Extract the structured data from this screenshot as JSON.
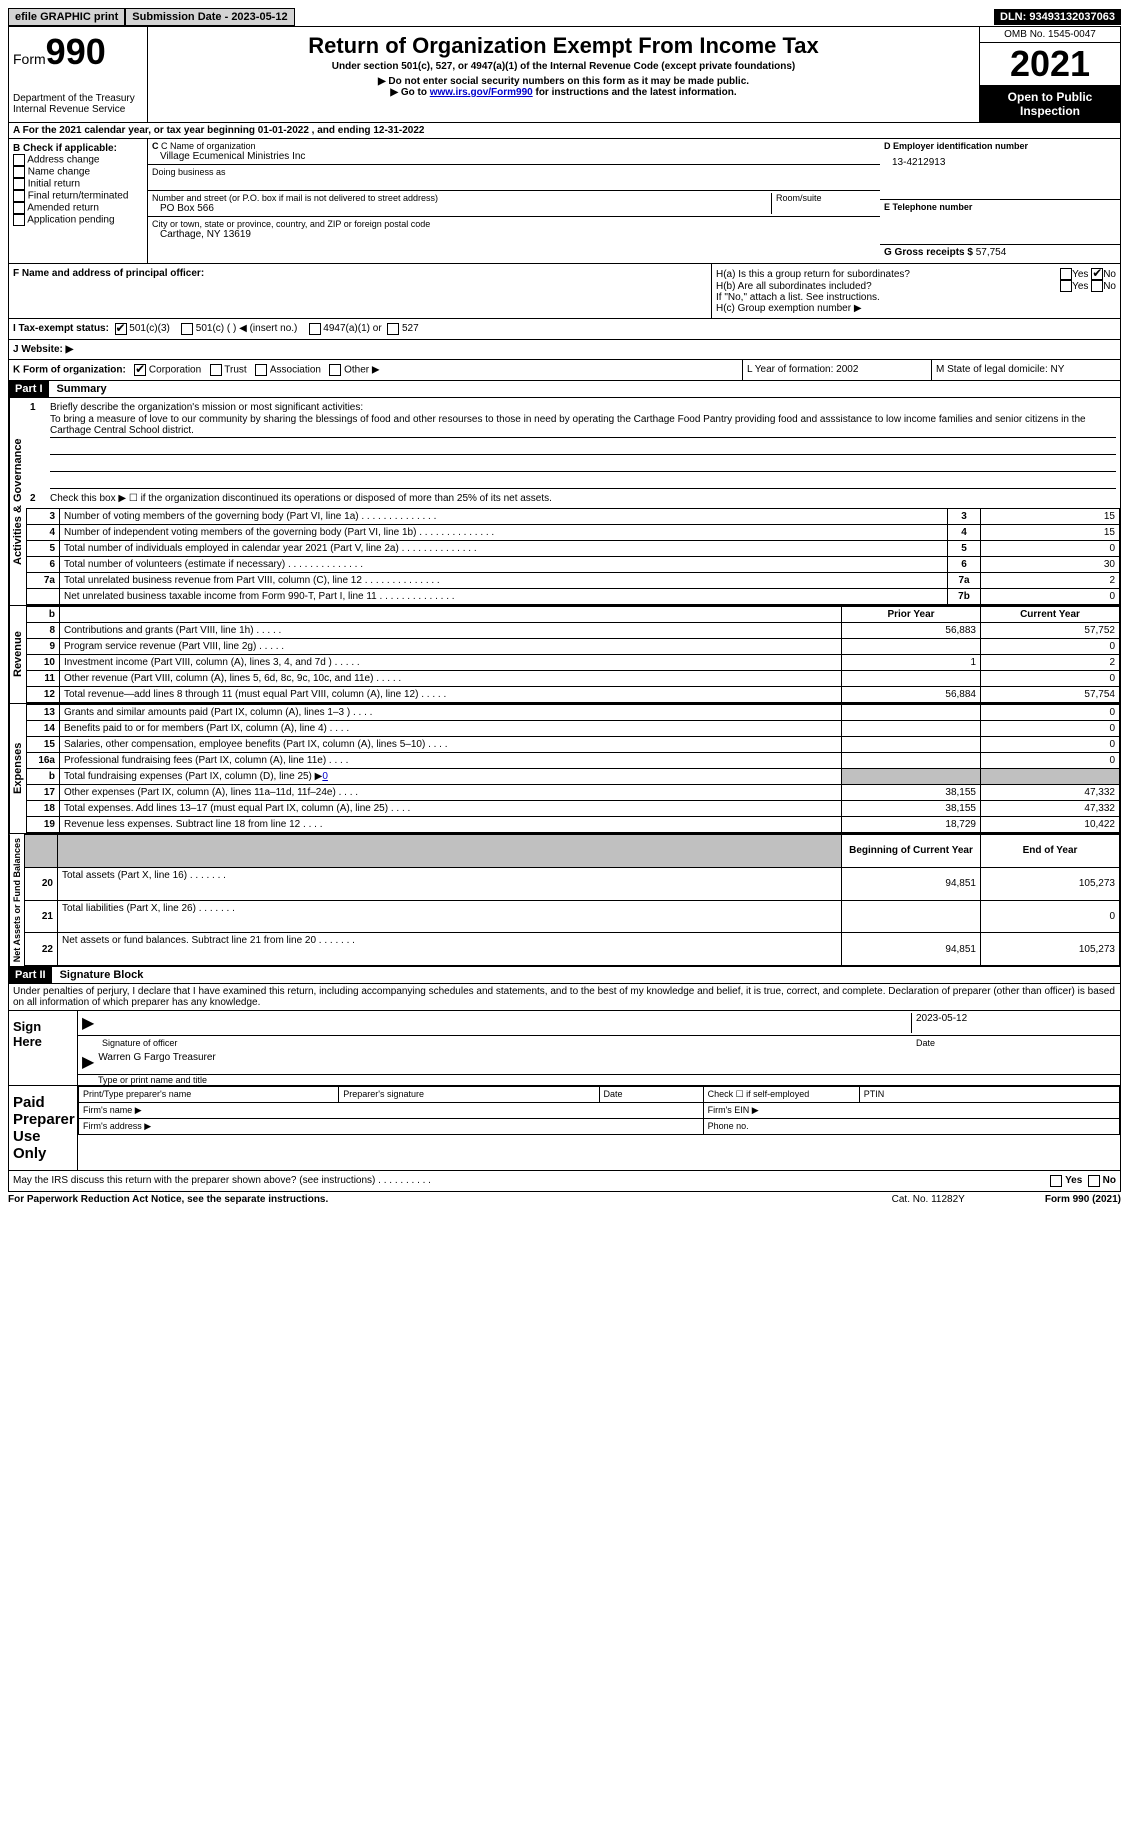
{
  "topbar": {
    "efile": "efile GRAPHIC print",
    "submission_label": "Submission Date - 2023-05-12",
    "dln": "DLN: 93493132037063"
  },
  "header": {
    "form_label": "Form",
    "form_number": "990",
    "dept": "Department of the Treasury",
    "irs": "Internal Revenue Service",
    "title": "Return of Organization Exempt From Income Tax",
    "subtitle": "Under section 501(c), 527, or 4947(a)(1) of the Internal Revenue Code (except private foundations)",
    "note1": "▶ Do not enter social security numbers on this form as it may be made public.",
    "note2_pre": "▶ Go to ",
    "note2_link": "www.irs.gov/Form990",
    "note2_post": " for instructions and the latest information.",
    "omb": "OMB No. 1545-0047",
    "year": "2021",
    "inspection": "Open to Public Inspection"
  },
  "lineA": "A For the 2021 calendar year, or tax year beginning 01-01-2022   , and ending 12-31-2022",
  "secB": {
    "title": "B Check if applicable:",
    "opts": [
      "Address change",
      "Name change",
      "Initial return",
      "Final return/terminated",
      "Amended return",
      "Application pending"
    ],
    "c_label": "C Name of organization",
    "c_name": "Village Ecumenical Ministries Inc",
    "dba_label": "Doing business as",
    "addr_label": "Number and street (or P.O. box if mail is not delivered to street address)",
    "room_label": "Room/suite",
    "addr": "PO Box 566",
    "city_label": "City or town, state or province, country, and ZIP or foreign postal code",
    "city": "Carthage, NY  13619",
    "d_label": "D Employer identification number",
    "d_val": "13-4212913",
    "e_label": "E Telephone number",
    "g_label": "G Gross receipts $ ",
    "g_val": "57,754"
  },
  "secF": {
    "f_label": "F  Name and address of principal officer:",
    "ha": "H(a)  Is this a group return for subordinates?",
    "hb": "H(b)  Are all subordinates included?",
    "hb_note": "If \"No,\" attach a list. See instructions.",
    "hc": "H(c)  Group exemption number ▶",
    "yes": "Yes",
    "no": "No"
  },
  "secI": {
    "label": "I     Tax-exempt status:",
    "o1": "501(c)(3)",
    "o2": "501(c) (  ) ◀ (insert no.)",
    "o3": "4947(a)(1) or",
    "o4": "527"
  },
  "secJ": "J    Website: ▶",
  "secK": {
    "label": "K Form of organization:",
    "o1": "Corporation",
    "o2": "Trust",
    "o3": "Association",
    "o4": "Other ▶",
    "l": "L Year of formation: 2002",
    "m": "M State of legal domicile: NY"
  },
  "part1": {
    "hdr": "Part I",
    "title": "Summary",
    "l1": "Briefly describe the organization's mission or most significant activities:",
    "mission": "To bring a measure of love to our community by sharing the blessings of food and other resourses to those in need by operating the Carthage Food Pantry providing food and asssistance to low income families and senior citizens in the Carthage Central School district.",
    "l2": "Check this box ▶ ☐  if the organization discontinued its operations or disposed of more than 25% of its net assets.",
    "vlabel_ag": "Activities & Governance",
    "vlabel_rev": "Revenue",
    "vlabel_exp": "Expenses",
    "vlabel_na": "Net Assets or Fund Balances",
    "prior_year": "Prior Year",
    "current_year": "Current Year",
    "begin_year": "Beginning of Current Year",
    "end_year": "End of Year"
  },
  "rows_ag": [
    {
      "n": "3",
      "d": "Number of voting members of the governing body (Part VI, line 1a)",
      "b": "3",
      "v": "15"
    },
    {
      "n": "4",
      "d": "Number of independent voting members of the governing body (Part VI, line 1b)",
      "b": "4",
      "v": "15"
    },
    {
      "n": "5",
      "d": "Total number of individuals employed in calendar year 2021 (Part V, line 2a)",
      "b": "5",
      "v": "0"
    },
    {
      "n": "6",
      "d": "Total number of volunteers (estimate if necessary)",
      "b": "6",
      "v": "30"
    },
    {
      "n": "7a",
      "d": "Total unrelated business revenue from Part VIII, column (C), line 12",
      "b": "7a",
      "v": "2"
    },
    {
      "n": "",
      "d": "Net unrelated business taxable income from Form 990-T, Part I, line 11",
      "b": "7b",
      "v": "0"
    }
  ],
  "rows_rev": [
    {
      "n": "8",
      "d": "Contributions and grants (Part VIII, line 1h)",
      "p": "56,883",
      "c": "57,752"
    },
    {
      "n": "9",
      "d": "Program service revenue (Part VIII, line 2g)",
      "p": "",
      "c": "0"
    },
    {
      "n": "10",
      "d": "Investment income (Part VIII, column (A), lines 3, 4, and 7d )",
      "p": "1",
      "c": "2"
    },
    {
      "n": "11",
      "d": "Other revenue (Part VIII, column (A), lines 5, 6d, 8c, 9c, 10c, and 11e)",
      "p": "",
      "c": "0"
    },
    {
      "n": "12",
      "d": "Total revenue—add lines 8 through 11 (must equal Part VIII, column (A), line 12)",
      "p": "56,884",
      "c": "57,754"
    }
  ],
  "rows_exp": [
    {
      "n": "13",
      "d": "Grants and similar amounts paid (Part IX, column (A), lines 1–3 )",
      "p": "",
      "c": "0"
    },
    {
      "n": "14",
      "d": "Benefits paid to or for members (Part IX, column (A), line 4)",
      "p": "",
      "c": "0"
    },
    {
      "n": "15",
      "d": "Salaries, other compensation, employee benefits (Part IX, column (A), lines 5–10)",
      "p": "",
      "c": "0"
    },
    {
      "n": "16a",
      "d": "Professional fundraising fees (Part IX, column (A), line 11e)",
      "p": "",
      "c": "0"
    },
    {
      "n": "b",
      "d": "Total fundraising expenses (Part IX, column (D), line 25) ▶",
      "p": "shade",
      "c": "shade",
      "inline": "0"
    },
    {
      "n": "17",
      "d": "Other expenses (Part IX, column (A), lines 11a–11d, 11f–24e)",
      "p": "38,155",
      "c": "47,332"
    },
    {
      "n": "18",
      "d": "Total expenses. Add lines 13–17 (must equal Part IX, column (A), line 25)",
      "p": "38,155",
      "c": "47,332"
    },
    {
      "n": "19",
      "d": "Revenue less expenses. Subtract line 18 from line 12",
      "p": "18,729",
      "c": "10,422"
    }
  ],
  "rows_na": [
    {
      "n": "20",
      "d": "Total assets (Part X, line 16)",
      "p": "94,851",
      "c": "105,273"
    },
    {
      "n": "21",
      "d": "Total liabilities (Part X, line 26)",
      "p": "",
      "c": "0"
    },
    {
      "n": "22",
      "d": "Net assets or fund balances. Subtract line 21 from line 20",
      "p": "94,851",
      "c": "105,273"
    }
  ],
  "part2": {
    "hdr": "Part II",
    "title": "Signature Block",
    "declaration": "Under penalties of perjury, I declare that I have examined this return, including accompanying schedules and statements, and to the best of my knowledge and belief, it is true, correct, and complete. Declaration of preparer (other than officer) is based on all information of which preparer has any knowledge.",
    "sign_here": "Sign Here",
    "sig_officer": "Signature of officer",
    "date": "Date",
    "sig_date": "2023-05-12",
    "name_title": "Warren G Fargo  Treasurer",
    "name_title_label": "Type or print name and title",
    "paid": "Paid Preparer Use Only",
    "pp_name": "Print/Type preparer's name",
    "pp_sig": "Preparer's signature",
    "pp_date": "Date",
    "pp_check": "Check ☐ if self-employed",
    "ptin": "PTIN",
    "firm_name": "Firm's name    ▶",
    "firm_ein": "Firm's EIN ▶",
    "firm_addr": "Firm's address ▶",
    "phone": "Phone no.",
    "may_discuss": "May the IRS discuss this return with the preparer shown above? (see instructions)"
  },
  "footer": {
    "l": "For Paperwork Reduction Act Notice, see the separate instructions.",
    "c": "Cat. No. 11282Y",
    "r": "Form 990 (2021)"
  }
}
